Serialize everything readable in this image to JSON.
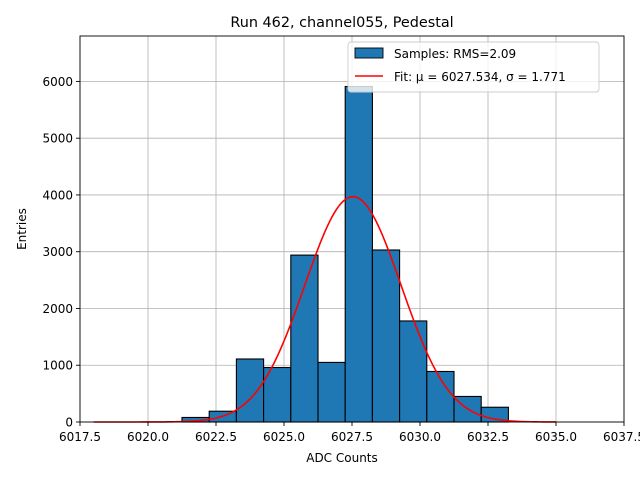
{
  "chart_data": {
    "type": "bar",
    "title": "Run 462, channel055, Pedestal",
    "xlabel": "ADC Counts",
    "ylabel": "Entries",
    "xlim": [
      6017.5,
      6037.5
    ],
    "ylim": [
      0,
      6800
    ],
    "xticks": [
      6017.5,
      6020.0,
      6022.5,
      6025.0,
      6027.5,
      6030.0,
      6032.5,
      6035.0,
      6037.5
    ],
    "xtick_labels": [
      "6017.5",
      "6020.0",
      "6022.5",
      "6025.0",
      "6027.5",
      "6030.0",
      "6032.5",
      "6035.0",
      "6037.5"
    ],
    "yticks": [
      0,
      1000,
      2000,
      3000,
      4000,
      5000,
      6000
    ],
    "ytick_labels": [
      "0",
      "1000",
      "2000",
      "3000",
      "4000",
      "5000",
      "6000"
    ],
    "grid": true,
    "legend_position": "top-right",
    "histogram": {
      "name": "Samples: RMS=2.09",
      "color": "#1f77b4",
      "edge_color": "#000000",
      "bin_edges": [
        6021.25,
        6022.25,
        6023.25,
        6024.25,
        6025.25,
        6026.25,
        6027.25,
        6028.25,
        6029.25,
        6030.25,
        6031.25,
        6032.25,
        6033.25
      ],
      "values": [
        80,
        190,
        1110,
        960,
        2940,
        1050,
        5910,
        3030,
        1780,
        890,
        450,
        260
      ]
    },
    "fit": {
      "name": "Fit: μ = 6027.534, σ = 1.771",
      "color": "#ff0000",
      "mu": 6027.534,
      "sigma": 1.771,
      "peak": 3970,
      "x_range": [
        6018.0,
        6035.0
      ]
    }
  }
}
